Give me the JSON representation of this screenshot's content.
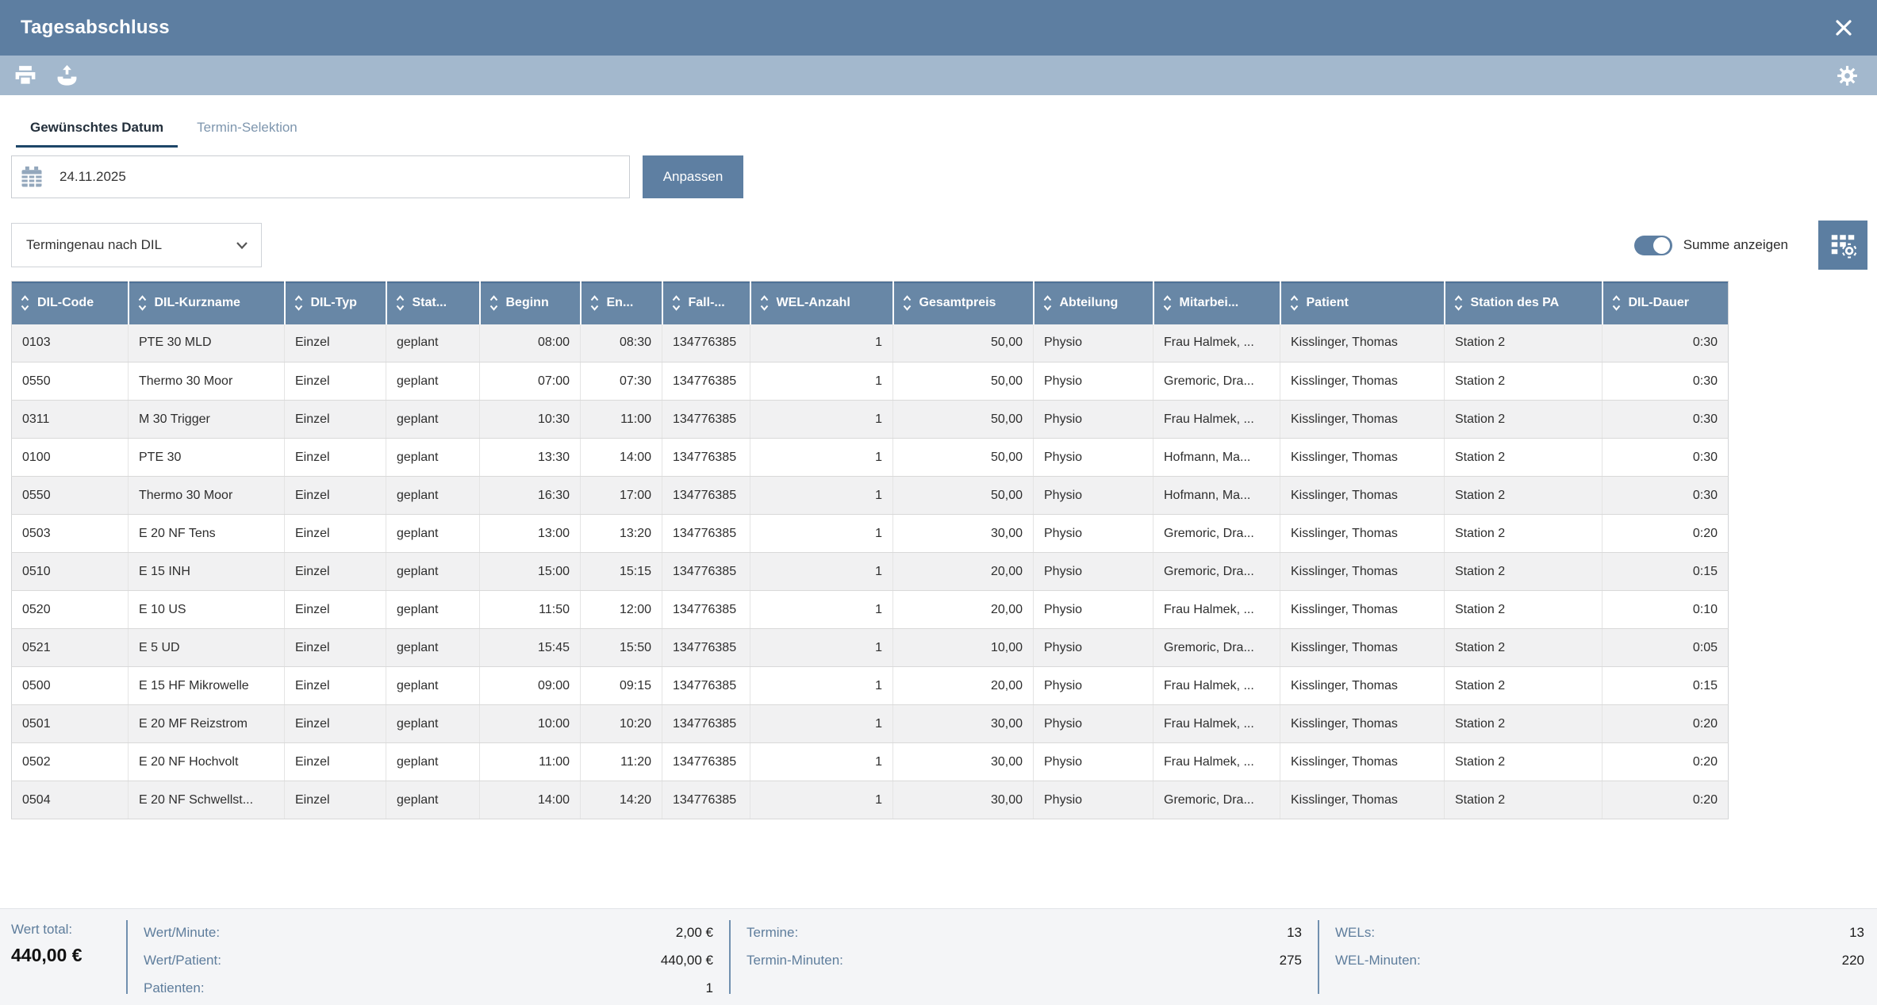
{
  "window": {
    "title": "Tagesabschluss"
  },
  "toolbar": {
    "icons": [
      "print-icon",
      "export-report-icon"
    ],
    "right_icon": "settings-gear-icon"
  },
  "tabs": [
    {
      "label": "Gewünschtes Datum",
      "active": true
    },
    {
      "label": "Termin-Selektion",
      "active": false
    }
  ],
  "date_filter": {
    "icon": "calendar-icon",
    "value": "24.11.2025",
    "apply_label": "Anpassen"
  },
  "grouping_select": {
    "value": "Termingenau nach DIL"
  },
  "sum_toggle": {
    "label": "Summe anzeigen",
    "state": "on"
  },
  "table_settings_button": {
    "icon": "table-settings-icon"
  },
  "table": {
    "columns": [
      {
        "key": "dil-code",
        "label": "DIL-Code"
      },
      {
        "key": "dil-kurzname",
        "label": "DIL-Kurzname"
      },
      {
        "key": "dil-typ",
        "label": "DIL-Typ"
      },
      {
        "key": "status",
        "label": "Stat..."
      },
      {
        "key": "beginn",
        "label": "Beginn"
      },
      {
        "key": "ende",
        "label": "En..."
      },
      {
        "key": "fall",
        "label": "Fall-..."
      },
      {
        "key": "wel-anzahl",
        "label": "WEL-Anzahl"
      },
      {
        "key": "gesamtpreis",
        "label": "Gesamtpreis"
      },
      {
        "key": "abteilung",
        "label": "Abteilung"
      },
      {
        "key": "mitarbeiter",
        "label": "Mitarbei..."
      },
      {
        "key": "patient",
        "label": "Patient"
      },
      {
        "key": "station-des-pa",
        "label": "Station des PA"
      },
      {
        "key": "dil-dauer",
        "label": "DIL-Dauer"
      }
    ],
    "rows": [
      [
        "0103",
        "PTE 30 MLD",
        "Einzel",
        "geplant",
        "08:00",
        "08:30",
        "134776385",
        "1",
        "50,00",
        "Physio",
        "Frau Halmek, ...",
        "Kisslinger, Thomas",
        "Station 2",
        "0:30"
      ],
      [
        "0550",
        "Thermo 30 Moor",
        "Einzel",
        "geplant",
        "07:00",
        "07:30",
        "134776385",
        "1",
        "50,00",
        "Physio",
        "Gremoric, Dra...",
        "Kisslinger, Thomas",
        "Station 2",
        "0:30"
      ],
      [
        "0311",
        "M 30 Trigger",
        "Einzel",
        "geplant",
        "10:30",
        "11:00",
        "134776385",
        "1",
        "50,00",
        "Physio",
        "Frau Halmek, ...",
        "Kisslinger, Thomas",
        "Station 2",
        "0:30"
      ],
      [
        "0100",
        "PTE 30",
        "Einzel",
        "geplant",
        "13:30",
        "14:00",
        "134776385",
        "1",
        "50,00",
        "Physio",
        "Hofmann, Ma...",
        "Kisslinger, Thomas",
        "Station 2",
        "0:30"
      ],
      [
        "0550",
        "Thermo 30 Moor",
        "Einzel",
        "geplant",
        "16:30",
        "17:00",
        "134776385",
        "1",
        "50,00",
        "Physio",
        "Hofmann, Ma...",
        "Kisslinger, Thomas",
        "Station 2",
        "0:30"
      ],
      [
        "0503",
        "E 20 NF Tens",
        "Einzel",
        "geplant",
        "13:00",
        "13:20",
        "134776385",
        "1",
        "30,00",
        "Physio",
        "Gremoric, Dra...",
        "Kisslinger, Thomas",
        "Station 2",
        "0:20"
      ],
      [
        "0510",
        "E 15 INH",
        "Einzel",
        "geplant",
        "15:00",
        "15:15",
        "134776385",
        "1",
        "20,00",
        "Physio",
        "Gremoric, Dra...",
        "Kisslinger, Thomas",
        "Station 2",
        "0:15"
      ],
      [
        "0520",
        "E 10 US",
        "Einzel",
        "geplant",
        "11:50",
        "12:00",
        "134776385",
        "1",
        "20,00",
        "Physio",
        "Frau Halmek, ...",
        "Kisslinger, Thomas",
        "Station 2",
        "0:10"
      ],
      [
        "0521",
        "E 5 UD",
        "Einzel",
        "geplant",
        "15:45",
        "15:50",
        "134776385",
        "1",
        "10,00",
        "Physio",
        "Gremoric, Dra...",
        "Kisslinger, Thomas",
        "Station 2",
        "0:05"
      ],
      [
        "0500",
        "E 15 HF Mikrowelle",
        "Einzel",
        "geplant",
        "09:00",
        "09:15",
        "134776385",
        "1",
        "20,00",
        "Physio",
        "Frau Halmek, ...",
        "Kisslinger, Thomas",
        "Station 2",
        "0:15"
      ],
      [
        "0501",
        "E 20 MF Reizstrom",
        "Einzel",
        "geplant",
        "10:00",
        "10:20",
        "134776385",
        "1",
        "30,00",
        "Physio",
        "Frau Halmek, ...",
        "Kisslinger, Thomas",
        "Station 2",
        "0:20"
      ],
      [
        "0502",
        "E 20 NF Hochvolt",
        "Einzel",
        "geplant",
        "11:00",
        "11:20",
        "134776385",
        "1",
        "30,00",
        "Physio",
        "Frau Halmek, ...",
        "Kisslinger, Thomas",
        "Station 2",
        "0:20"
      ],
      [
        "0504",
        "E 20 NF Schwellst...",
        "Einzel",
        "geplant",
        "14:00",
        "14:20",
        "134776385",
        "1",
        "30,00",
        "Physio",
        "Gremoric, Dra...",
        "Kisslinger, Thomas",
        "Station 2",
        "0:20"
      ]
    ]
  },
  "summary": {
    "total": {
      "label": "Wert total:",
      "value": "440,00 €"
    },
    "col2": [
      {
        "label": "Wert/Minute:",
        "value": "2,00 €"
      },
      {
        "label": "Wert/Patient:",
        "value": "440,00 €"
      },
      {
        "label": "Patienten:",
        "value": "1"
      }
    ],
    "col3": [
      {
        "label": "Termine:",
        "value": "13"
      },
      {
        "label": "Termin-Minuten:",
        "value": "275"
      }
    ],
    "col4": [
      {
        "label": "WELs:",
        "value": "13"
      },
      {
        "label": "WEL-Minuten:",
        "value": "220"
      }
    ]
  },
  "colors": {
    "titlebar": "#5d7ea1",
    "toolbar": "#a3b8cd",
    "table_header": "#6887a6",
    "accent_button": "#5e7fa2",
    "tab_underline": "#1d4668",
    "summary_label": "#5e7d9c",
    "summary_bg": "#f4f5f7",
    "row_alt": "#f1f1f2"
  }
}
